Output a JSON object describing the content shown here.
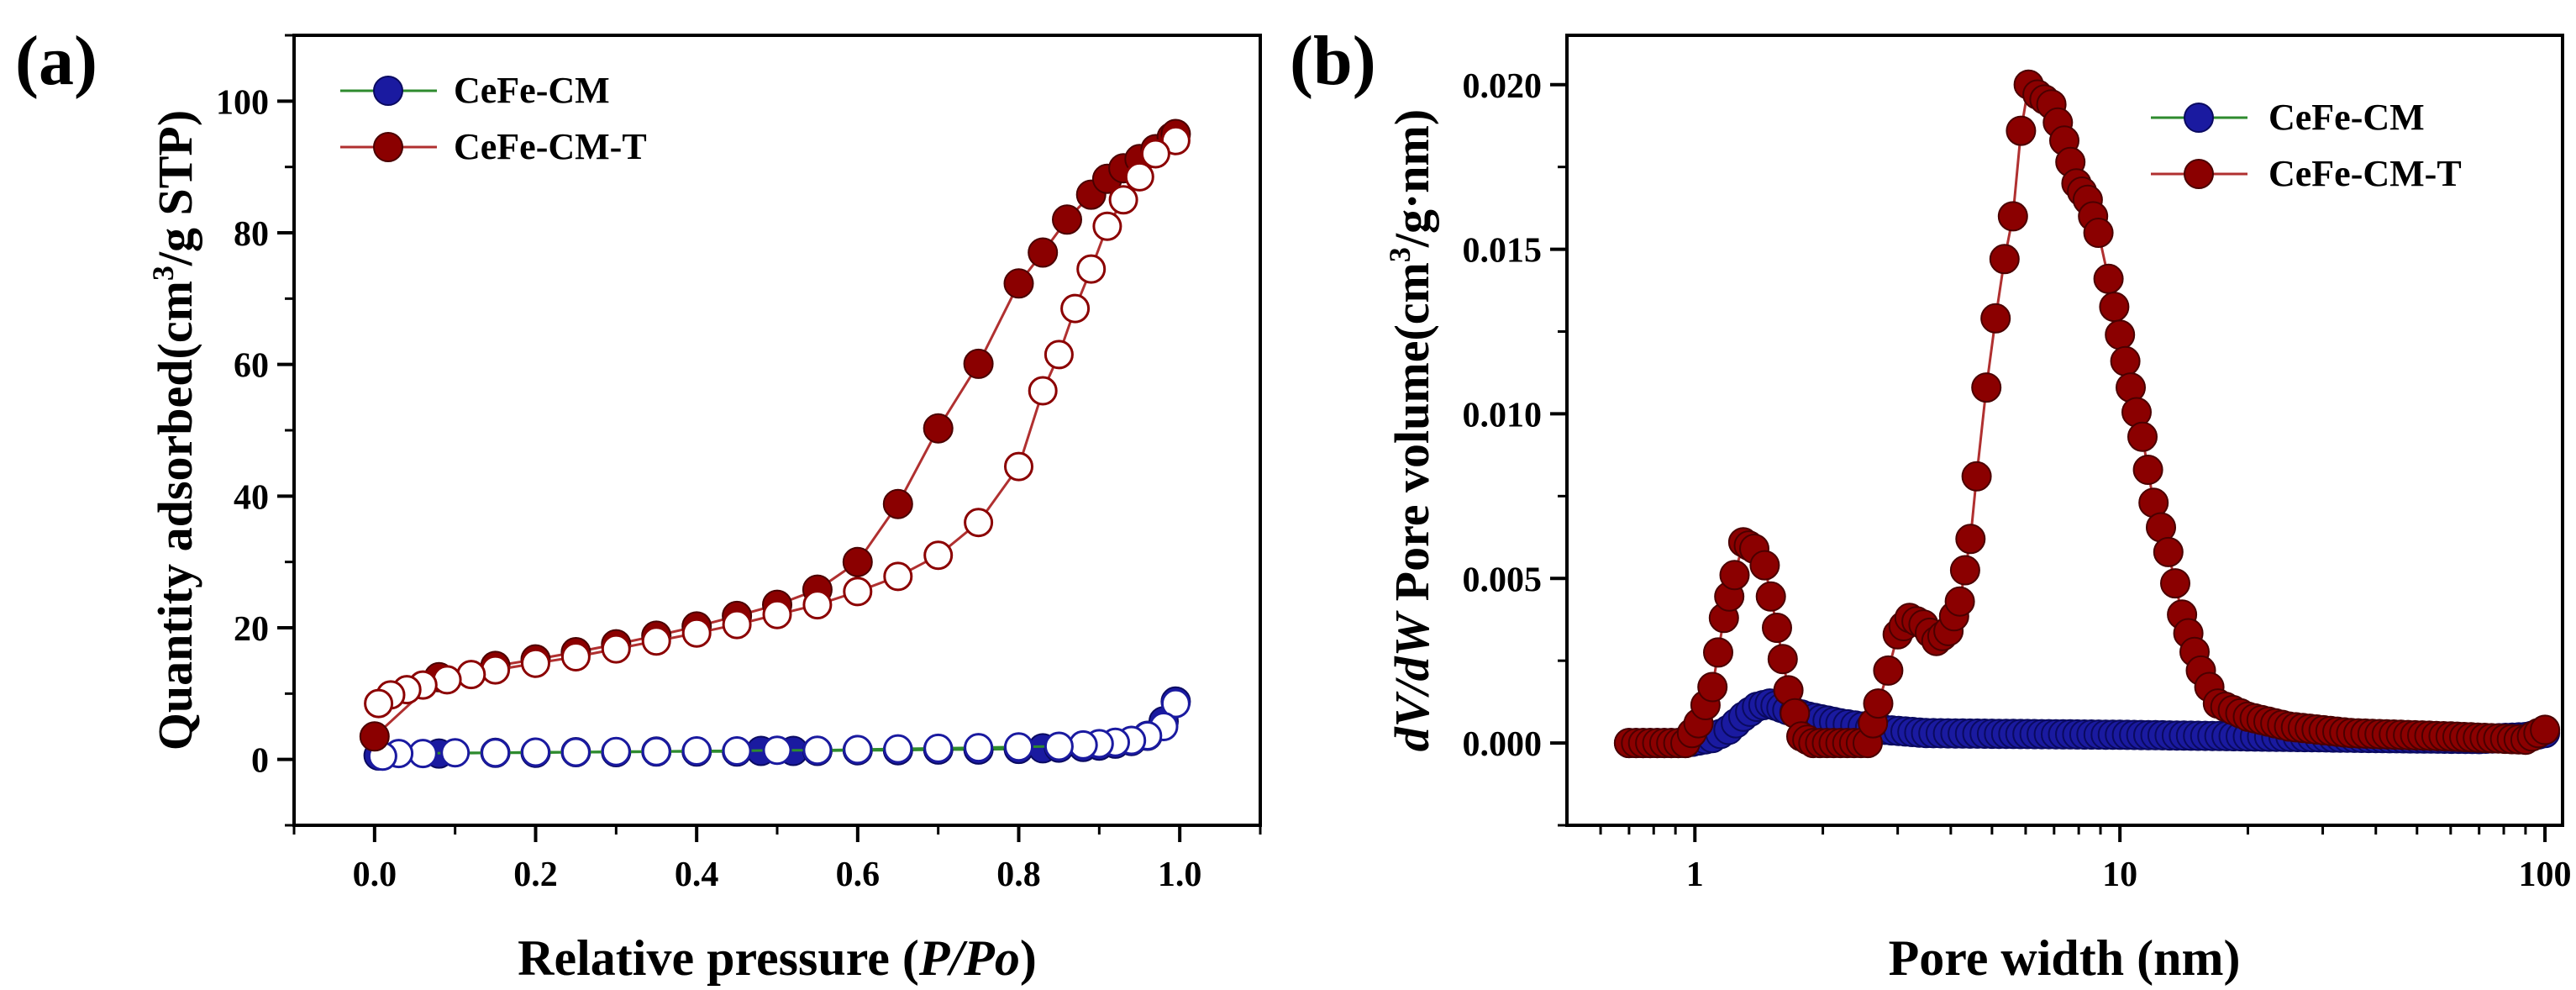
{
  "colors": {
    "cm": "#1a1aa0",
    "cmt": "#8b0000",
    "cm_line": "#2e8b2e",
    "cmt_line": "#b03030"
  },
  "chart_data": [
    {
      "type": "scatter",
      "panel_label": "(a)",
      "title": "",
      "xlabel_main": "Relative pressure (",
      "xlabel_ital": "P/Po",
      "xlabel_end": ")",
      "ylabel": "Quantity adsorbed(cm",
      "ylabel_sup": "3",
      "ylabel_end": "/g STP)",
      "xlim": [
        -0.1,
        1.1
      ],
      "ylim": [
        -10,
        110
      ],
      "xticks": [
        0.0,
        0.2,
        0.4,
        0.6,
        0.8,
        1.0
      ],
      "xtick_labels": [
        "0.0",
        "0.2",
        "0.4",
        "0.6",
        "0.8",
        "1.0"
      ],
      "yticks": [
        0,
        20,
        40,
        60,
        80,
        100
      ],
      "ytick_labels": [
        "0",
        "20",
        "40",
        "60",
        "80",
        "100"
      ],
      "legend_position": "top-left",
      "series": [
        {
          "name": "CeFe-CM",
          "key": "cm",
          "branch": "adsorption",
          "filled": true,
          "x": [
            0.005,
            0.08,
            0.15,
            0.2,
            0.25,
            0.3,
            0.35,
            0.4,
            0.45,
            0.48,
            0.52,
            0.55,
            0.6,
            0.65,
            0.7,
            0.75,
            0.8,
            0.83,
            0.85,
            0.88,
            0.9,
            0.92,
            0.94,
            0.96,
            0.98,
            0.995
          ],
          "y": [
            0.6,
            0.9,
            1.0,
            1.0,
            1.1,
            1.1,
            1.2,
            1.2,
            1.2,
            1.3,
            1.3,
            1.3,
            1.4,
            1.4,
            1.5,
            1.5,
            1.6,
            1.7,
            1.8,
            1.9,
            2.1,
            2.4,
            2.8,
            3.6,
            5.8,
            8.8
          ]
        },
        {
          "name": "CeFe-CM",
          "key": "cm",
          "branch": "desorption",
          "filled": false,
          "x": [
            0.995,
            0.98,
            0.96,
            0.94,
            0.92,
            0.9,
            0.88,
            0.85,
            0.8,
            0.75,
            0.7,
            0.65,
            0.6,
            0.55,
            0.5,
            0.45,
            0.4,
            0.35,
            0.3,
            0.25,
            0.2,
            0.15,
            0.1,
            0.06,
            0.03,
            0.01
          ],
          "y": [
            8.5,
            5.0,
            3.6,
            2.9,
            2.6,
            2.4,
            2.2,
            2.0,
            1.9,
            1.8,
            1.7,
            1.6,
            1.5,
            1.4,
            1.4,
            1.3,
            1.3,
            1.2,
            1.2,
            1.1,
            1.1,
            1.0,
            1.0,
            0.9,
            0.9,
            0.5
          ]
        },
        {
          "name": "CeFe-CM-T",
          "key": "cmt",
          "branch": "adsorption",
          "filled": true,
          "x": [
            0.0,
            0.08,
            0.15,
            0.2,
            0.25,
            0.3,
            0.35,
            0.4,
            0.45,
            0.5,
            0.55,
            0.6,
            0.65,
            0.7,
            0.75,
            0.8,
            0.83,
            0.86,
            0.89,
            0.91,
            0.93,
            0.95,
            0.97,
            0.99,
            0.995
          ],
          "y": [
            3.5,
            12.5,
            14.2,
            15.2,
            16.3,
            17.5,
            18.8,
            20.2,
            21.8,
            23.5,
            25.8,
            30.0,
            38.8,
            50.3,
            60.1,
            72.3,
            77.0,
            82.0,
            85.8,
            88.2,
            89.8,
            91.2,
            92.7,
            94.5,
            95.0
          ]
        },
        {
          "name": "CeFe-CM-T",
          "key": "cmt",
          "branch": "desorption",
          "filled": false,
          "x": [
            0.995,
            0.97,
            0.95,
            0.93,
            0.91,
            0.89,
            0.87,
            0.85,
            0.83,
            0.8,
            0.75,
            0.7,
            0.65,
            0.6,
            0.55,
            0.5,
            0.45,
            0.4,
            0.35,
            0.3,
            0.25,
            0.2,
            0.15,
            0.12,
            0.09,
            0.06,
            0.04,
            0.02,
            0.005
          ],
          "y": [
            94.0,
            92.0,
            88.5,
            85.0,
            81.0,
            74.5,
            68.5,
            61.5,
            56.0,
            44.5,
            36.0,
            31.0,
            27.8,
            25.5,
            23.5,
            22.0,
            20.5,
            19.2,
            18.0,
            16.8,
            15.6,
            14.6,
            13.6,
            12.9,
            12.1,
            11.3,
            10.6,
            9.8,
            8.5
          ]
        }
      ]
    },
    {
      "type": "scatter",
      "panel_label": "(b)",
      "title": "",
      "xlabel": "Pore width (nm)",
      "ylabel_ital": "dV/dW",
      "ylabel_main": " Pore volume(cm",
      "ylabel_sup": "3",
      "ylabel_end": "/g·nm)",
      "xscale": "log",
      "xlim": [
        0.5,
        110
      ],
      "ylim": [
        -0.0025,
        0.0215
      ],
      "xticks": [
        1,
        10,
        100
      ],
      "xtick_labels": [
        "1",
        "10",
        "100"
      ],
      "yticks": [
        0.0,
        0.005,
        0.01,
        0.015,
        0.02
      ],
      "ytick_labels": [
        "0.000",
        "0.005",
        "0.010",
        "0.015",
        "0.020"
      ],
      "legend_position": "top-right",
      "series": [
        {
          "name": "CeFe-CM",
          "key": "cm",
          "filled": true,
          "peaks": [
            {
              "x": 0.7,
              "y": 0.0
            },
            {
              "x": 0.95,
              "y": 0.0
            },
            {
              "x": 1.1,
              "y": 0.00015
            },
            {
              "x": 1.2,
              "y": 0.0004
            },
            {
              "x": 1.3,
              "y": 0.0008
            },
            {
              "x": 1.4,
              "y": 0.0011
            },
            {
              "x": 1.5,
              "y": 0.0012
            },
            {
              "x": 1.65,
              "y": 0.001
            },
            {
              "x": 1.85,
              "y": 0.0008
            },
            {
              "x": 2.2,
              "y": 0.0006
            },
            {
              "x": 2.8,
              "y": 0.0004
            },
            {
              "x": 3.5,
              "y": 0.0003
            },
            {
              "x": 5.0,
              "y": 0.00028
            },
            {
              "x": 10.0,
              "y": 0.00025
            },
            {
              "x": 20.0,
              "y": 0.0002
            },
            {
              "x": 40.0,
              "y": 0.00015
            },
            {
              "x": 70.0,
              "y": 0.00012
            },
            {
              "x": 90.0,
              "y": 0.00018
            },
            {
              "x": 100.0,
              "y": 0.0003
            }
          ]
        },
        {
          "name": "CeFe-CM-T",
          "key": "cmt",
          "filled": true,
          "peaks": [
            {
              "x": 0.7,
              "y": 0.0
            },
            {
              "x": 0.95,
              "y": 0.0
            },
            {
              "x": 1.02,
              "y": 0.0006
            },
            {
              "x": 1.1,
              "y": 0.0017
            },
            {
              "x": 1.17,
              "y": 0.0038
            },
            {
              "x": 1.24,
              "y": 0.0051
            },
            {
              "x": 1.3,
              "y": 0.0061
            },
            {
              "x": 1.38,
              "y": 0.0059
            },
            {
              "x": 1.46,
              "y": 0.0054
            },
            {
              "x": 1.56,
              "y": 0.0035
            },
            {
              "x": 1.66,
              "y": 0.0016
            },
            {
              "x": 1.78,
              "y": 0.0002
            },
            {
              "x": 1.9,
              "y": 0.0
            },
            {
              "x": 2.55,
              "y": 0.0
            },
            {
              "x": 2.7,
              "y": 0.0012
            },
            {
              "x": 2.85,
              "y": 0.0022
            },
            {
              "x": 3.0,
              "y": 0.0033
            },
            {
              "x": 3.2,
              "y": 0.0038
            },
            {
              "x": 3.45,
              "y": 0.0036
            },
            {
              "x": 3.7,
              "y": 0.0031
            },
            {
              "x": 3.95,
              "y": 0.0034
            },
            {
              "x": 4.2,
              "y": 0.0043
            },
            {
              "x": 4.45,
              "y": 0.0062
            },
            {
              "x": 4.6,
              "y": 0.0081
            },
            {
              "x": 4.85,
              "y": 0.0108
            },
            {
              "x": 5.1,
              "y": 0.0129
            },
            {
              "x": 5.35,
              "y": 0.0147
            },
            {
              "x": 5.6,
              "y": 0.016
            },
            {
              "x": 5.85,
              "y": 0.0186
            },
            {
              "x": 6.1,
              "y": 0.02
            },
            {
              "x": 6.4,
              "y": 0.0197
            },
            {
              "x": 6.9,
              "y": 0.0194
            },
            {
              "x": 7.4,
              "y": 0.0183
            },
            {
              "x": 7.9,
              "y": 0.017
            },
            {
              "x": 8.4,
              "y": 0.0165
            },
            {
              "x": 8.9,
              "y": 0.0155
            },
            {
              "x": 9.4,
              "y": 0.0141
            },
            {
              "x": 10.0,
              "y": 0.0124
            },
            {
              "x": 10.6,
              "y": 0.0108
            },
            {
              "x": 11.3,
              "y": 0.0093
            },
            {
              "x": 12.0,
              "y": 0.0073
            },
            {
              "x": 13.0,
              "y": 0.0058
            },
            {
              "x": 14.0,
              "y": 0.0039
            },
            {
              "x": 15.5,
              "y": 0.0022
            },
            {
              "x": 17.0,
              "y": 0.0012
            },
            {
              "x": 20.0,
              "y": 0.0008
            },
            {
              "x": 25.0,
              "y": 0.0005
            },
            {
              "x": 35.0,
              "y": 0.0003
            },
            {
              "x": 60.0,
              "y": 0.0002
            },
            {
              "x": 90.0,
              "y": 0.0001
            },
            {
              "x": 100.0,
              "y": 0.0004
            }
          ]
        }
      ]
    }
  ]
}
